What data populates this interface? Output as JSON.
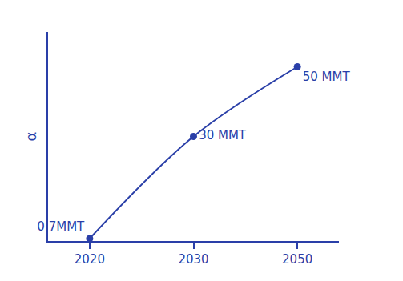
{
  "chart_data": {
    "type": "line",
    "categories": [
      "2020",
      "2030",
      "2050"
    ],
    "values": [
      0.7,
      30,
      50
    ],
    "value_labels": [
      "0.7MMT",
      "30 MMT",
      "50 MMT"
    ],
    "data_labels": true,
    "y_label": "α",
    "ylim": [
      0,
      60
    ],
    "yticks": [],
    "tick_labels": "x",
    "grid": false,
    "color": "#2a3fa8",
    "marker": "circle",
    "line_style": "solid"
  }
}
